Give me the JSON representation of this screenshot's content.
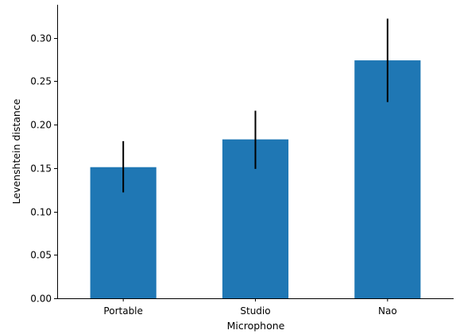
{
  "chart_data": {
    "type": "bar",
    "title": "",
    "xlabel": "Microphone",
    "ylabel": "Levenshtein distance",
    "categories": [
      "Portable",
      "Studio",
      "Nao"
    ],
    "values": [
      0.151,
      0.183,
      0.274
    ],
    "error_low": [
      0.122,
      0.149,
      0.226
    ],
    "error_high": [
      0.181,
      0.216,
      0.322
    ],
    "ylim": [
      0,
      0.338
    ],
    "yticks": [
      "0.00",
      "0.05",
      "0.10",
      "0.15",
      "0.20",
      "0.25",
      "0.30"
    ],
    "grid": false,
    "legend": "none",
    "bar_color": "#1f77b4",
    "error_color": "#000000"
  }
}
